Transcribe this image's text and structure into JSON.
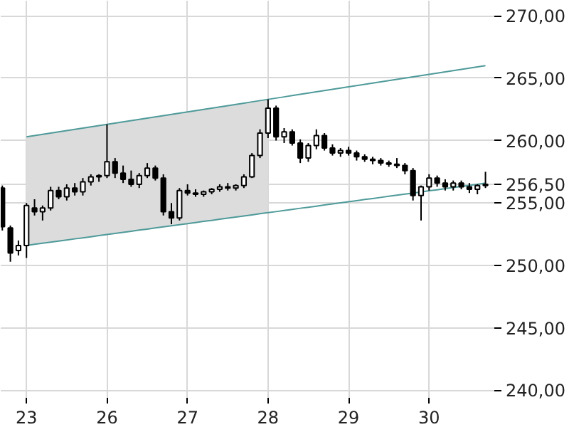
{
  "chart_data": {
    "type": "candlestick",
    "categories": [
      null,
      null,
      null,
      "23",
      null,
      null,
      null,
      null,
      null,
      null,
      null,
      null,
      null,
      "26",
      null,
      null,
      null,
      null,
      null,
      null,
      null,
      null,
      null,
      "27",
      null,
      null,
      null,
      null,
      null,
      null,
      null,
      null,
      null,
      "28",
      null,
      null,
      null,
      null,
      null,
      null,
      null,
      null,
      null,
      "29",
      null,
      null,
      null,
      null,
      null,
      null,
      null,
      null,
      null,
      "30",
      null,
      null,
      null,
      null,
      null,
      null,
      null
    ],
    "ohlc": [
      [
        256.2,
        256.4,
        252.8,
        253.1
      ],
      [
        253.0,
        253.2,
        250.3,
        251.0
      ],
      [
        251.2,
        252.0,
        250.8,
        251.6
      ],
      [
        251.6,
        255.0,
        250.6,
        254.8
      ],
      [
        254.6,
        255.3,
        254.0,
        254.3
      ],
      [
        254.3,
        254.8,
        253.6,
        254.6
      ],
      [
        254.6,
        256.3,
        254.4,
        256.0
      ],
      [
        256.0,
        256.3,
        255.3,
        255.5
      ],
      [
        255.5,
        256.5,
        255.2,
        256.2
      ],
      [
        256.2,
        256.6,
        255.6,
        255.9
      ],
      [
        255.9,
        257.0,
        255.6,
        256.7
      ],
      [
        256.7,
        257.3,
        256.4,
        257.1
      ],
      [
        257.1,
        257.3,
        256.7,
        257.2
      ],
      [
        257.2,
        261.3,
        257.0,
        258.3
      ],
      [
        258.3,
        258.6,
        257.0,
        257.4
      ],
      [
        257.4,
        258.0,
        256.6,
        256.9
      ],
      [
        256.9,
        257.6,
        256.3,
        256.5
      ],
      [
        256.5,
        257.4,
        256.2,
        257.2
      ],
      [
        257.2,
        258.2,
        257.0,
        257.8
      ],
      [
        257.8,
        258.0,
        256.8,
        257.0
      ],
      [
        257.0,
        257.3,
        254.0,
        254.3
      ],
      [
        254.3,
        255.0,
        253.3,
        253.8
      ],
      [
        253.8,
        256.2,
        253.6,
        256.0
      ],
      [
        256.0,
        256.5,
        255.6,
        255.8
      ],
      [
        255.8,
        256.1,
        255.5,
        255.7
      ],
      [
        255.7,
        256.0,
        255.5,
        255.9
      ],
      [
        255.9,
        256.2,
        255.7,
        256.1
      ],
      [
        256.1,
        256.5,
        255.9,
        256.3
      ],
      [
        256.3,
        256.6,
        256.0,
        256.2
      ],
      [
        256.2,
        256.5,
        256.0,
        256.4
      ],
      [
        256.4,
        257.3,
        256.2,
        257.1
      ],
      [
        257.1,
        259.0,
        257.0,
        258.8
      ],
      [
        258.8,
        260.9,
        258.6,
        260.6
      ],
      [
        260.6,
        263.3,
        260.2,
        262.6
      ],
      [
        262.6,
        262.8,
        260.0,
        260.3
      ],
      [
        260.3,
        261.0,
        259.8,
        260.7
      ],
      [
        260.7,
        260.9,
        259.6,
        259.8
      ],
      [
        259.8,
        260.1,
        258.2,
        258.6
      ],
      [
        258.6,
        259.8,
        258.3,
        259.6
      ],
      [
        259.6,
        260.9,
        259.3,
        260.4
      ],
      [
        260.4,
        260.6,
        259.2,
        259.4
      ],
      [
        259.4,
        259.7,
        258.8,
        259.0
      ],
      [
        259.0,
        259.4,
        258.7,
        259.2
      ],
      [
        259.2,
        259.5,
        258.8,
        259.0
      ],
      [
        259.0,
        259.2,
        258.4,
        258.7
      ],
      [
        258.7,
        258.9,
        258.3,
        258.5
      ],
      [
        258.5,
        258.7,
        258.1,
        258.4
      ],
      [
        258.4,
        258.6,
        258.0,
        258.2
      ],
      [
        258.2,
        258.4,
        257.9,
        258.1
      ],
      [
        258.1,
        258.6,
        257.8,
        258.0
      ],
      [
        258.0,
        258.2,
        257.3,
        257.6
      ],
      [
        257.6,
        257.8,
        255.2,
        255.6
      ],
      [
        255.6,
        256.4,
        253.6,
        256.3
      ],
      [
        256.3,
        257.3,
        256.0,
        257.0
      ],
      [
        257.0,
        257.2,
        256.3,
        256.6
      ],
      [
        256.6,
        256.9,
        256.0,
        256.3
      ],
      [
        256.3,
        256.8,
        256.0,
        256.6
      ],
      [
        256.6,
        256.8,
        256.1,
        256.3
      ],
      [
        256.3,
        256.6,
        255.8,
        256.1
      ],
      [
        256.1,
        256.5,
        255.7,
        256.4
      ],
      [
        256.4,
        257.5,
        256.2,
        256.5
      ]
    ],
    "series": [
      {
        "type": "line",
        "color": "#4f9a9a",
        "values": [
          null,
          null,
          null,
          260.3,
          260.4,
          260.5,
          260.6,
          260.7,
          260.8,
          260.9,
          261.0,
          261.1,
          261.2,
          261.3,
          261.4,
          261.5,
          261.6,
          261.7,
          261.8,
          261.9,
          262.0,
          262.1,
          262.2,
          262.3,
          262.4,
          262.5,
          262.6,
          262.7,
          262.8,
          262.9,
          263.0,
          263.1,
          263.2,
          263.3,
          263.4,
          263.5,
          263.6,
          263.7,
          263.8,
          263.9,
          264.0,
          264.1,
          264.2,
          264.3,
          264.4,
          264.5,
          264.6,
          264.7,
          264.8,
          264.9,
          265.0,
          265.1,
          265.2,
          265.3,
          265.4,
          265.5,
          265.6,
          265.7,
          265.8,
          265.9,
          266.0
        ],
        "lower": [
          null,
          null,
          null,
          251.6,
          251.69,
          251.78,
          251.86,
          251.95,
          252.04,
          252.13,
          252.21,
          252.3,
          252.39,
          252.48,
          252.56,
          252.65,
          252.74,
          252.83,
          252.91,
          253.0,
          253.09,
          253.18,
          253.26,
          253.35,
          253.44,
          253.53,
          253.61,
          253.7,
          253.79,
          253.88,
          253.96,
          254.05,
          254.14,
          254.23,
          null,
          null,
          null,
          null,
          null,
          null,
          null,
          null,
          null,
          null,
          null,
          null,
          null,
          null,
          null,
          null,
          null,
          null,
          null,
          null,
          null,
          null,
          null,
          null,
          null,
          null,
          null
        ],
        "upper": [
          null,
          null,
          null,
          260.3,
          260.4,
          260.5,
          260.6,
          260.7,
          260.8,
          260.9,
          261.0,
          261.1,
          261.2,
          261.3,
          261.4,
          261.5,
          261.6,
          261.7,
          261.8,
          261.9,
          262.0,
          262.1,
          262.2,
          262.3,
          262.4,
          262.5,
          262.6,
          262.7,
          262.8,
          262.9,
          263.0,
          263.1,
          263.2,
          263.3,
          null,
          null,
          null,
          null,
          null,
          null,
          null,
          null,
          null,
          null,
          null,
          null,
          null,
          null,
          null,
          null,
          null,
          null,
          null,
          null,
          null,
          null,
          null,
          null,
          null,
          null,
          null
        ]
      },
      {
        "type": "line",
        "color": "#4f9a9a",
        "values": [
          null,
          null,
          null,
          251.6,
          251.69,
          251.78,
          251.86,
          251.95,
          252.04,
          252.13,
          252.21,
          252.3,
          252.39,
          252.48,
          252.56,
          252.65,
          252.74,
          252.83,
          252.91,
          253.0,
          253.09,
          253.18,
          253.26,
          253.35,
          253.44,
          253.53,
          253.61,
          253.7,
          253.79,
          253.88,
          253.96,
          254.05,
          254.14,
          254.23,
          254.31,
          254.4,
          254.49,
          254.58,
          254.66,
          254.75,
          254.84,
          254.93,
          255.01,
          255.1,
          255.19,
          255.28,
          255.36,
          255.45,
          255.54,
          255.63,
          255.71,
          255.8,
          255.89,
          255.98,
          256.06,
          256.15,
          256.24,
          256.33,
          256.41,
          256.5,
          256.59
        ]
      }
    ],
    "ylim": [
      239.4,
      271.2
    ],
    "yticks": [
      {
        "value": 240,
        "label": "240,00"
      },
      {
        "value": 245,
        "label": "245,00"
      },
      {
        "value": 250,
        "label": "250,00"
      },
      {
        "value": 255,
        "label": "255,00"
      },
      {
        "value": 256.5,
        "label": "256,50"
      },
      {
        "value": 260,
        "label": "260,00"
      },
      {
        "value": 265,
        "label": "265,00"
      },
      {
        "value": 270,
        "label": "270,00"
      }
    ],
    "grid": true
  }
}
